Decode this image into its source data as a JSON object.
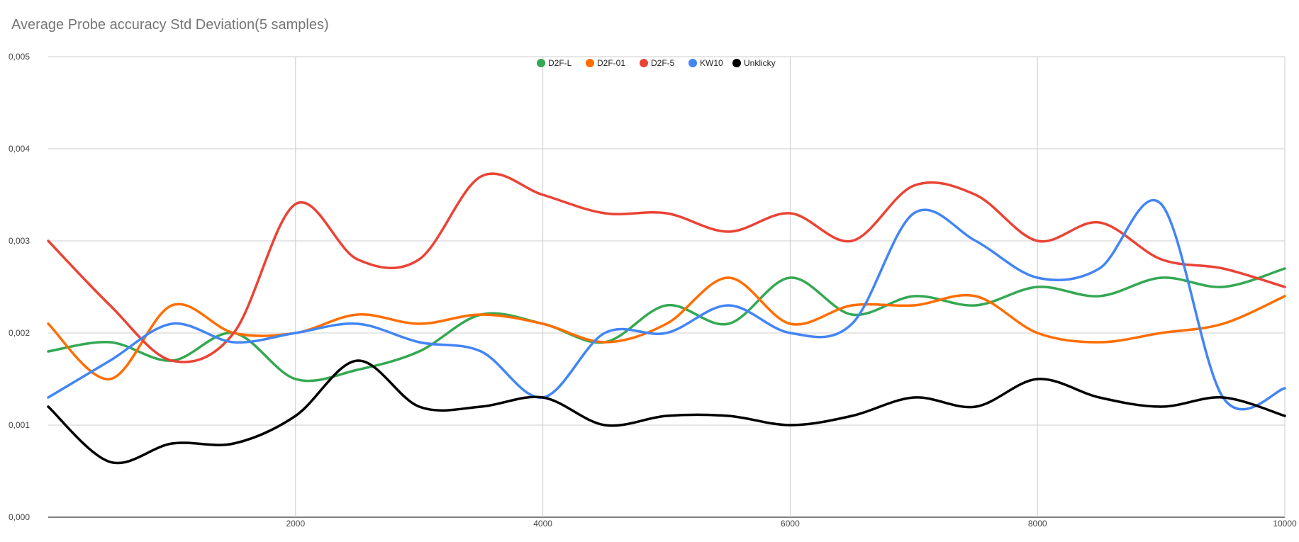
{
  "chart_data": {
    "type": "line",
    "title": "Average Probe accuracy Std Deviation(5 samples)",
    "xlabel": "",
    "ylabel": "",
    "xlim": [
      0,
      10000
    ],
    "ylim": [
      0,
      0.005
    ],
    "x_ticks": [
      2000,
      4000,
      6000,
      8000,
      10000
    ],
    "y_ticks": [
      0,
      0.001,
      0.002,
      0.003,
      0.004,
      0.005
    ],
    "x_tick_labels": [
      "2000",
      "4000",
      "6000",
      "8000",
      "10000"
    ],
    "y_tick_labels": [
      "0,000",
      "0,001",
      "0,002",
      "0,003",
      "0,004",
      "0,005"
    ],
    "grid": true,
    "legend_position": "top-center",
    "x": [
      0,
      500,
      1000,
      1500,
      2000,
      2500,
      3000,
      3500,
      4000,
      4500,
      5000,
      5500,
      6000,
      6500,
      7000,
      7500,
      8000,
      8500,
      9000,
      9500,
      10000
    ],
    "series": [
      {
        "name": "D2F-L",
        "color": "#34a853",
        "values": [
          0.0018,
          0.0019,
          0.0017,
          0.002,
          0.0015,
          0.0016,
          0.0018,
          0.0022,
          0.0021,
          0.0019,
          0.0023,
          0.0021,
          0.0026,
          0.0022,
          0.0024,
          0.0023,
          0.0025,
          0.0024,
          0.0026,
          0.0025,
          0.0027
        ]
      },
      {
        "name": "D2F-01",
        "color": "#ff6d01",
        "values": [
          0.0021,
          0.0015,
          0.0023,
          0.002,
          0.002,
          0.0022,
          0.0021,
          0.0022,
          0.0021,
          0.0019,
          0.0021,
          0.0026,
          0.0021,
          0.0023,
          0.0023,
          0.0024,
          0.002,
          0.0019,
          0.002,
          0.0021,
          0.0024
        ]
      },
      {
        "name": "D2F-5",
        "color": "#ea4335",
        "values": [
          0.003,
          0.0023,
          0.0017,
          0.002,
          0.0034,
          0.0028,
          0.0028,
          0.0037,
          0.0035,
          0.0033,
          0.0033,
          0.0031,
          0.0033,
          0.003,
          0.0036,
          0.0035,
          0.003,
          0.0032,
          0.0028,
          0.0027,
          0.0025
        ]
      },
      {
        "name": "KW10",
        "color": "#4285f4",
        "values": [
          0.0013,
          0.0017,
          0.0021,
          0.0019,
          0.002,
          0.0021,
          0.0019,
          0.0018,
          0.0013,
          0.002,
          0.002,
          0.0023,
          0.002,
          0.0021,
          0.0033,
          0.003,
          0.0026,
          0.0027,
          0.0034,
          0.0013,
          0.0014
        ]
      },
      {
        "name": "Unklicky",
        "color": "#000000",
        "values": [
          0.0012,
          0.0006,
          0.0008,
          0.0008,
          0.0011,
          0.0017,
          0.0012,
          0.0012,
          0.0013,
          0.001,
          0.0011,
          0.0011,
          0.001,
          0.0011,
          0.0013,
          0.0012,
          0.0015,
          0.0013,
          0.0012,
          0.0013,
          0.0011
        ]
      }
    ]
  }
}
